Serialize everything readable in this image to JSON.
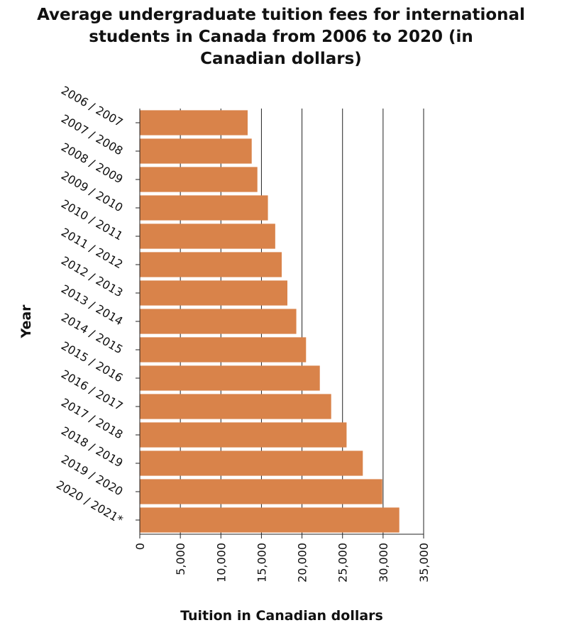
{
  "chart_data": {
    "type": "bar",
    "orientation": "horizontal",
    "title_lines": [
      "Average undergraduate tuition fees for international",
      "students in Canada from 2006 to 2020 (in",
      "Canadian dollars)"
    ],
    "xlabel": "Tuition in Canadian dollars",
    "ylabel": "Year",
    "xlim": [
      0,
      35000
    ],
    "xticks": [
      0,
      5000,
      10000,
      15000,
      20000,
      25000,
      30000,
      35000
    ],
    "xtick_labels": [
      "0",
      "5,000",
      "10,000",
      "15,000",
      "20,000",
      "25,000",
      "30,000",
      "35,000"
    ],
    "categories": [
      "2006 / 2007",
      "2007 / 2008",
      "2008 / 2009",
      "2009 / 2010",
      "2010 / 2011",
      "2011 / 2012",
      "2012 / 2013",
      "2013 / 2014",
      "2014 / 2015",
      "2015 / 2016",
      "2016 / 2017",
      "2017 / 2018",
      "2018 / 2019",
      "2019 / 2020",
      "2020 / 2021*"
    ],
    "values": [
      13300,
      13800,
      14500,
      15800,
      16700,
      17500,
      18200,
      19300,
      20500,
      22200,
      23600,
      25500,
      27500,
      29900,
      32000
    ],
    "bar_color": "#d9834a",
    "grid": "vertical"
  }
}
